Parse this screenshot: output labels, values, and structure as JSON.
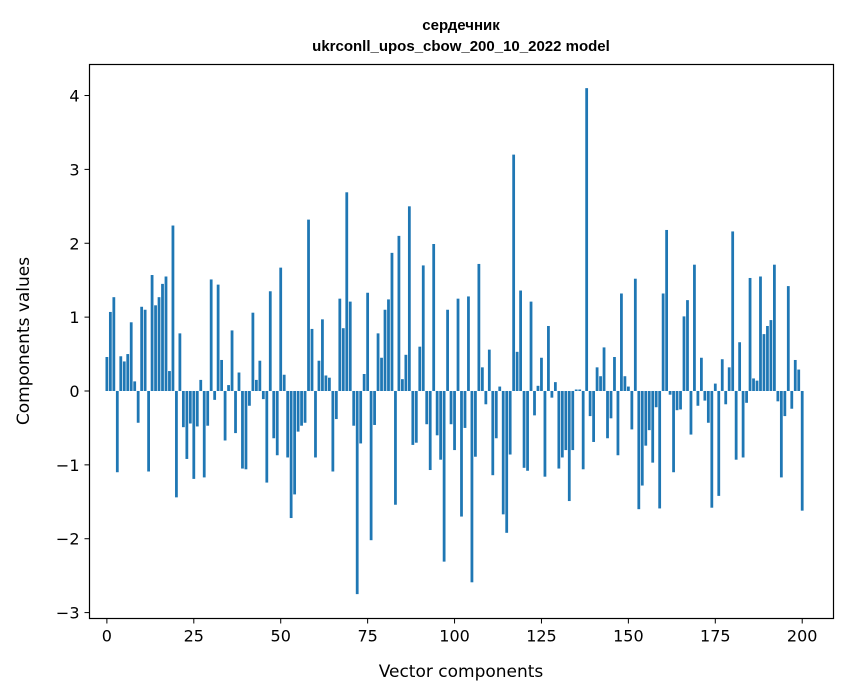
{
  "chart_data": {
    "type": "bar",
    "title": "сердечник",
    "subtitle": "ukrconll_upos_cbow_200_10_2022 model",
    "xlabel": "Vector components",
    "ylabel": "Components values",
    "xlim": [
      -5,
      209
    ],
    "ylim": [
      -3.08,
      4.42
    ],
    "x_ticks": [
      0,
      25,
      50,
      75,
      100,
      125,
      150,
      175,
      200
    ],
    "x_tick_labels": [
      "0",
      "25",
      "50",
      "75",
      "100",
      "125",
      "150",
      "175",
      "200"
    ],
    "y_ticks": [
      -3,
      -2,
      -1,
      0,
      1,
      2,
      3,
      4
    ],
    "y_tick_labels": [
      "−3",
      "−2",
      "−1",
      "0",
      "1",
      "2",
      "3",
      "4"
    ],
    "grid": false,
    "bar_color": "#1f77b4",
    "series": [
      {
        "values": [
          0.46,
          1.07,
          1.27,
          -1.1,
          0.47,
          0.4,
          0.5,
          0.93,
          0.13,
          -0.43,
          1.14,
          1.1,
          -1.09,
          1.57,
          1.16,
          1.27,
          1.45,
          1.55,
          0.27,
          2.24,
          -1.44,
          0.78,
          -0.49,
          -0.92,
          -0.44,
          -1.19,
          -0.48,
          0.15,
          -1.17,
          -0.47,
          1.51,
          -0.12,
          1.44,
          0.42,
          -0.67,
          0.08,
          0.82,
          -0.57,
          0.25,
          -1.05,
          -1.06,
          -0.2,
          1.06,
          0.15,
          0.41,
          -0.11,
          -1.24,
          1.35,
          -0.64,
          -0.87,
          1.67,
          0.22,
          -0.9,
          -1.72,
          -1.4,
          -0.55,
          -0.47,
          -0.43,
          2.32,
          0.84,
          -0.9,
          0.41,
          0.97,
          0.21,
          0.18,
          -1.09,
          -0.38,
          1.25,
          0.85,
          2.69,
          1.21,
          -0.47,
          -2.75,
          -0.71,
          0.23,
          1.33,
          -2.02,
          -0.46,
          0.78,
          0.45,
          1.1,
          1.24,
          1.87,
          -1.54,
          2.1,
          0.16,
          0.49,
          2.5,
          -0.73,
          -0.7,
          0.6,
          1.7,
          -0.45,
          -1.07,
          1.99,
          -0.6,
          -0.93,
          -2.31,
          1.1,
          -0.45,
          -0.8,
          1.25,
          -1.7,
          -0.5,
          1.28,
          -2.59,
          -0.89,
          1.72,
          0.32,
          -0.18,
          0.56,
          -1.14,
          -0.64,
          0.06,
          -1.67,
          -1.92,
          -0.86,
          3.2,
          0.53,
          1.36,
          -1.04,
          -1.08,
          1.21,
          -0.33,
          0.07,
          0.45,
          -1.16,
          0.88,
          -0.09,
          0.12,
          -1.05,
          -0.9,
          -0.8,
          -1.49,
          -0.8,
          0.02,
          0.02,
          -1.06,
          4.1,
          -0.34,
          -0.69,
          0.32,
          0.2,
          0.59,
          -0.64,
          -0.37,
          0.46,
          -0.87,
          1.32,
          0.2,
          0.06,
          -0.52,
          1.52,
          -1.6,
          -1.28,
          -0.74,
          -0.53,
          -0.97,
          -0.22,
          -1.59,
          1.32,
          2.18,
          -0.05,
          -1.1,
          -0.26,
          -0.25,
          1.01,
          1.23,
          -0.59,
          1.71,
          -0.2,
          0.45,
          -0.13,
          -0.43,
          -1.58,
          0.1,
          -1.42,
          0.43,
          -0.18,
          0.32,
          2.16,
          -0.93,
          0.66,
          -0.9,
          -0.16,
          1.53,
          0.17,
          0.14,
          1.55,
          0.77,
          0.88,
          0.96,
          1.71,
          -0.14,
          -1.17,
          -0.34,
          1.42,
          -0.24,
          0.42,
          0.29,
          -1.62
        ]
      }
    ]
  }
}
